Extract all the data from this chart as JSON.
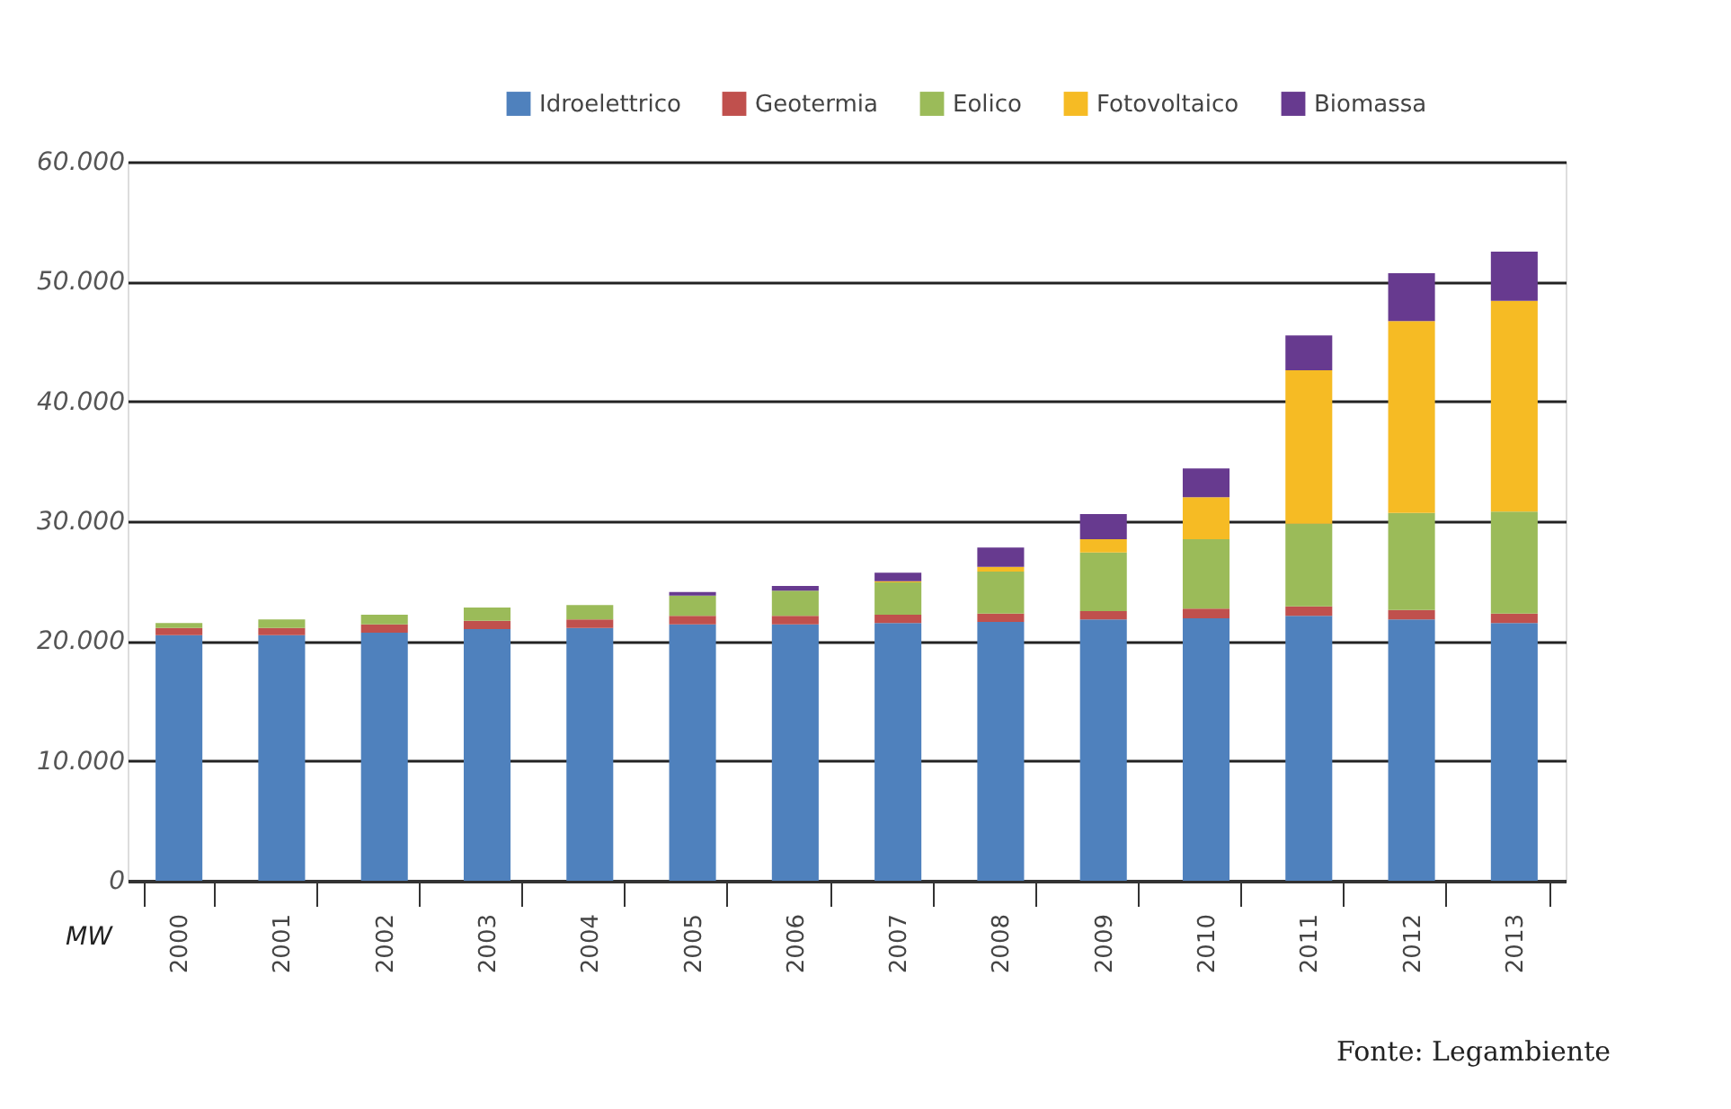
{
  "chart_data": {
    "type": "bar",
    "stacked": true,
    "ylabel": "MW",
    "categories": [
      "2000",
      "2001",
      "2002",
      "2003",
      "2004",
      "2005",
      "2006",
      "2007",
      "2008",
      "2009",
      "2010",
      "2011",
      "2012",
      "2013"
    ],
    "series": [
      {
        "name": "Idroelettrico",
        "color": "#4f81bd",
        "values": [
          20500,
          20500,
          20700,
          21000,
          21100,
          21400,
          21400,
          21500,
          21600,
          21800,
          21900,
          22100,
          21800,
          21500
        ]
      },
      {
        "name": "Geotermia",
        "color": "#c0504d",
        "values": [
          600,
          600,
          700,
          700,
          700,
          700,
          700,
          700,
          700,
          700,
          800,
          800,
          800,
          800
        ]
      },
      {
        "name": "Eolico",
        "color": "#9bbb59",
        "values": [
          400,
          700,
          800,
          1100,
          1200,
          1700,
          2100,
          2700,
          3500,
          4900,
          5800,
          6900,
          8100,
          8500
        ]
      },
      {
        "name": "Fotovoltaico",
        "color": "#f6bb24",
        "values": [
          0,
          0,
          0,
          0,
          0,
          0,
          0,
          100,
          400,
          1100,
          3500,
          12800,
          16000,
          17600
        ]
      },
      {
        "name": "Biomassa",
        "color": "#673a8f",
        "values": [
          0,
          0,
          0,
          0,
          0,
          300,
          400,
          700,
          1600,
          2100,
          2400,
          2900,
          4000,
          4100
        ]
      }
    ],
    "ylim": [
      0,
      60000
    ],
    "yticks": [
      {
        "value": 0,
        "label": "0"
      },
      {
        "value": 10000,
        "label": "10.000"
      },
      {
        "value": 20000,
        "label": "20.000"
      },
      {
        "value": 30000,
        "label": "30.000"
      },
      {
        "value": 40000,
        "label": "40.000"
      },
      {
        "value": 50000,
        "label": "50.000"
      },
      {
        "value": 60000,
        "label": "60.000"
      }
    ],
    "grid": "y",
    "legend": "top right",
    "annotations": [
      "Fonte: Legambiente"
    ]
  }
}
